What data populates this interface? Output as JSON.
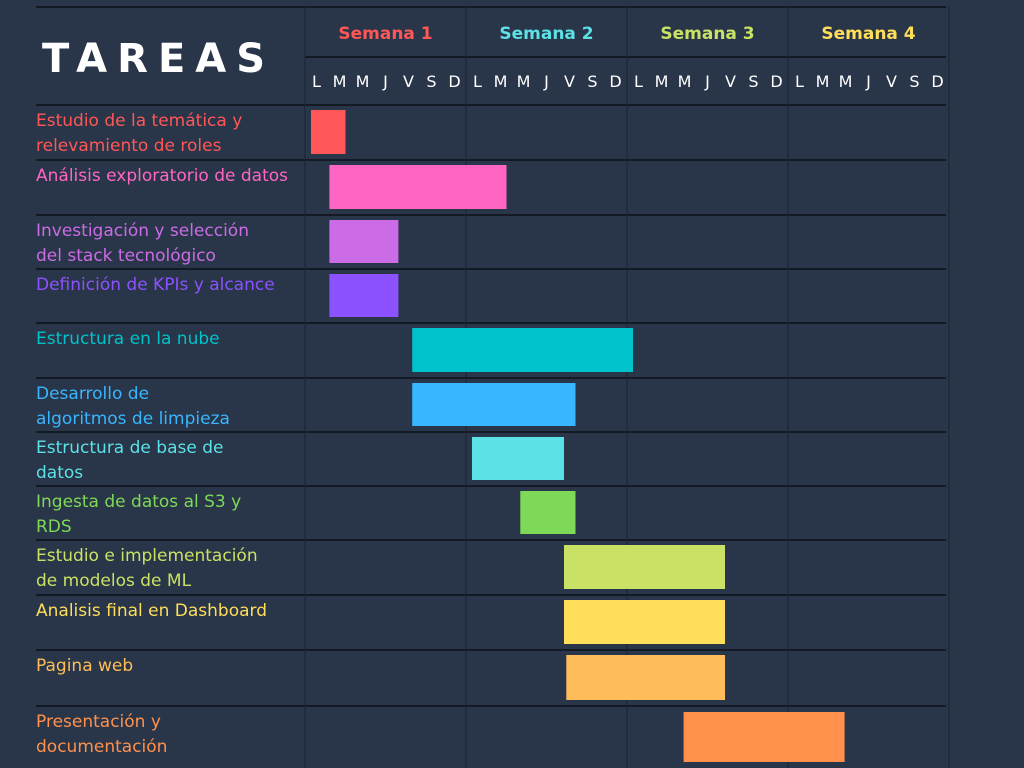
{
  "chart_data": {
    "type": "gantt",
    "title": "TAREAS",
    "weeks": [
      {
        "label": "Semana 1",
        "color": "#ff5757"
      },
      {
        "label": "Semana 2",
        "color": "#5ce1e6"
      },
      {
        "label": "Semana 3",
        "color": "#c9e265"
      },
      {
        "label": "Semana 4",
        "color": "#ffde59"
      }
    ],
    "day_labels": [
      "L",
      "M",
      "M",
      "J",
      "V",
      "S",
      "D"
    ],
    "tasks": [
      {
        "name": "Estudio de la temática y relevamiento de roles",
        "lines": [
          "Estudio de la temática y",
          "relevamiento de roles"
        ],
        "start": 0.0,
        "end": 1.5,
        "color": "#ff5757"
      },
      {
        "name": "Análisis exploratorio de datos",
        "lines": [
          "Análisis exploratorio de datos"
        ],
        "start": 0.8,
        "end": 8.5,
        "color": "#ff66c4"
      },
      {
        "name": "Investigación y selección del stack tecnológico",
        "lines": [
          "Investigación y selección",
          "del stack tecnológico"
        ],
        "start": 0.8,
        "end": 3.8,
        "color": "#cb6ce6"
      },
      {
        "name": "Definición de KPIs y alcance",
        "lines": [
          "Definición de KPIs y alcance"
        ],
        "start": 0.8,
        "end": 3.8,
        "color": "#8c52ff"
      },
      {
        "name": "Estructura en la nube",
        "lines": [
          "Estructura en la nube"
        ],
        "start": 4.4,
        "end": 14.0,
        "color": "#00c2cb"
      },
      {
        "name": "Desarrollo de algoritmos de limpieza",
        "lines": [
          "Desarrollo de",
          "algoritmos de limpieza"
        ],
        "start": 4.4,
        "end": 11.5,
        "color": "#38b6ff"
      },
      {
        "name": "Estructura de base de datos",
        "lines": [
          "Estructura de base de",
          "datos"
        ],
        "start": 7.0,
        "end": 11.0,
        "color": "#5ce1e6"
      },
      {
        "name": "Ingesta de datos al S3 y RDS",
        "lines": [
          "Ingesta de datos al S3 y",
          "RDS"
        ],
        "start": 9.1,
        "end": 11.5,
        "color": "#7ed957"
      },
      {
        "name": "Estudio e implementación de modelos de ML",
        "lines": [
          "Estudio e implementación",
          "de modelos de ML"
        ],
        "start": 11.0,
        "end": 18.0,
        "color": "#c9e265"
      },
      {
        "name": "Analisis final en Dashboard",
        "lines": [
          "Analisis final en Dashboard"
        ],
        "start": 11.0,
        "end": 18.0,
        "color": "#ffde59"
      },
      {
        "name": "Pagina web",
        "lines": [
          "Pagina web"
        ],
        "start": 11.1,
        "end": 18.0,
        "color": "#ffbd59"
      },
      {
        "name": "Presentación y documentación",
        "lines": [
          "Presentación y",
          "documentación"
        ],
        "start": 16.2,
        "end": 23.2,
        "color": "#ff914d"
      }
    ]
  }
}
